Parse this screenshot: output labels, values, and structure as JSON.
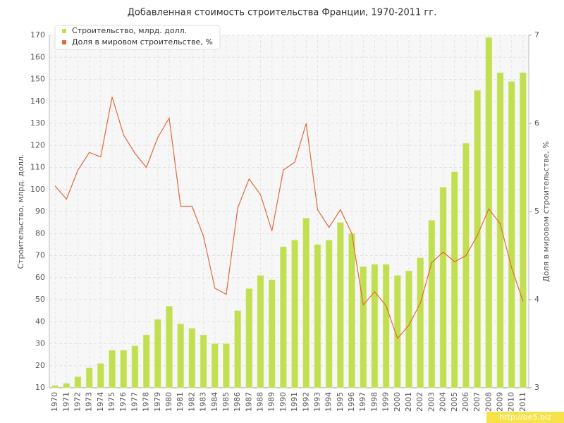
{
  "chart_data": {
    "type": "bar-line",
    "title": "Добавленная стоимость строительства Франции, 1970-2011 гг.",
    "y_label": "Строительство, млрд. долл.",
    "y2_label": "Доля в мировом строительстве, %",
    "categories": [
      "1970",
      "1971",
      "1972",
      "1973",
      "1974",
      "1975",
      "1976",
      "1977",
      "1978",
      "1979",
      "1980",
      "1981",
      "1982",
      "1983",
      "1984",
      "1985",
      "1986",
      "1987",
      "1988",
      "1989",
      "1990",
      "1991",
      "1992",
      "1993",
      "1994",
      "1995",
      "1996",
      "1997",
      "1998",
      "1999",
      "2000",
      "2001",
      "2002",
      "2003",
      "2004",
      "2005",
      "2006",
      "2007",
      "2008",
      "2009",
      "2010",
      "2011"
    ],
    "series": [
      {
        "name": "Строительство, млрд. долл.",
        "color": "#c2df52",
        "values": [
          11,
          12,
          15,
          19,
          21,
          27,
          27,
          29,
          34,
          41,
          47,
          39,
          37,
          34,
          30,
          30,
          45,
          55,
          61,
          59,
          74,
          77,
          87,
          75,
          77,
          85,
          80,
          65,
          66,
          66,
          61,
          63,
          69,
          86,
          101,
          108,
          121,
          145,
          169,
          153,
          149,
          153
        ]
      },
      {
        "name": "Доля в мировом строительстве, %",
        "color": "#e06a3c",
        "axis": "y2",
        "values": [
          5.29,
          5.14,
          5.47,
          5.67,
          5.62,
          6.3,
          5.87,
          5.66,
          5.5,
          5.84,
          6.06,
          5.06,
          5.06,
          4.72,
          4.13,
          4.06,
          5.04,
          5.37,
          5.19,
          4.78,
          5.47,
          5.56,
          6.0,
          5.02,
          4.82,
          5.02,
          4.75,
          3.94,
          4.09,
          3.93,
          3.56,
          3.71,
          3.96,
          4.42,
          4.54,
          4.43,
          4.5,
          4.73,
          5.03,
          4.86,
          4.36,
          3.98
        ]
      }
    ],
    "ylim": [
      10,
      170
    ],
    "yticks": [
      10,
      20,
      30,
      40,
      50,
      60,
      70,
      80,
      90,
      100,
      110,
      120,
      130,
      140,
      150,
      160,
      170
    ],
    "y2lim": [
      3,
      7
    ],
    "y2ticks": [
      3,
      4,
      5,
      6,
      7
    ],
    "grid": true,
    "legend": "top-left"
  },
  "watermark": "http://be5.biz"
}
